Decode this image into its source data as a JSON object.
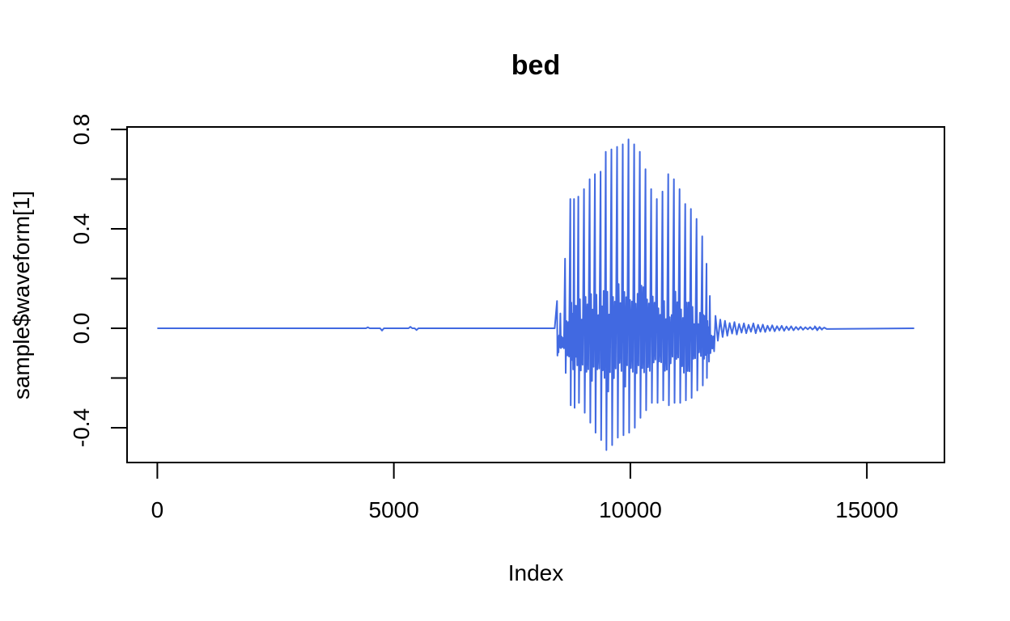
{
  "chart_data": {
    "type": "line",
    "title": "bed",
    "xlabel": "Index",
    "ylabel": "sample$waveform[1]",
    "xlim": [
      -640,
      16640
    ],
    "ylim": [
      -0.54,
      0.81
    ],
    "x_ticks": [
      0,
      5000,
      10000,
      15000
    ],
    "x_tick_labels": [
      "0",
      "5000",
      "10000",
      "15000"
    ],
    "y_ticks": [
      -0.4,
      -0.2,
      0.0,
      0.2,
      0.4,
      0.6,
      0.8
    ],
    "y_tick_labels": [
      "-0.4",
      "",
      "0.0",
      "",
      "0.4",
      "",
      "0.8"
    ],
    "grid": false,
    "series": [
      {
        "name": "waveform",
        "color": "#4169E1",
        "length": 16000,
        "x_range": [
          0,
          16000
        ],
        "peaks": [
          [
            8450,
            0.11,
            -0.11
          ],
          [
            8520,
            0.06,
            -0.08
          ],
          [
            8620,
            0.28,
            -0.18
          ],
          [
            8730,
            0.52,
            -0.31
          ],
          [
            8810,
            0.52,
            -0.32
          ],
          [
            8900,
            0.53,
            -0.3
          ],
          [
            9020,
            0.56,
            -0.34
          ],
          [
            9140,
            0.6,
            -0.38
          ],
          [
            9250,
            0.62,
            -0.42
          ],
          [
            9370,
            0.63,
            -0.45
          ],
          [
            9480,
            0.71,
            -0.49
          ],
          [
            9600,
            0.72,
            -0.47
          ],
          [
            9720,
            0.73,
            -0.44
          ],
          [
            9840,
            0.74,
            -0.43
          ],
          [
            9960,
            0.76,
            -0.42
          ],
          [
            10080,
            0.74,
            -0.4
          ],
          [
            10200,
            0.71,
            -0.36
          ],
          [
            10320,
            0.64,
            -0.33
          ],
          [
            10440,
            0.56,
            -0.3
          ],
          [
            10560,
            0.52,
            -0.3
          ],
          [
            10680,
            0.55,
            -0.29
          ],
          [
            10800,
            0.62,
            -0.31
          ],
          [
            10920,
            0.6,
            -0.3
          ],
          [
            11040,
            0.56,
            -0.3
          ],
          [
            11160,
            0.5,
            -0.29
          ],
          [
            11280,
            0.48,
            -0.28
          ],
          [
            11400,
            0.44,
            -0.25
          ],
          [
            11520,
            0.37,
            -0.23
          ],
          [
            11610,
            0.26,
            -0.2
          ],
          [
            11680,
            0.13,
            -0.1
          ]
        ],
        "tail": [
          [
            11800,
            0.05
          ],
          [
            12000,
            0.03
          ],
          [
            12200,
            0.025
          ],
          [
            12400,
            0.02
          ],
          [
            12600,
            0.02
          ],
          [
            12800,
            0.015
          ],
          [
            13000,
            0.012
          ],
          [
            13200,
            0.01
          ],
          [
            13400,
            0.008
          ],
          [
            13600,
            0.006
          ],
          [
            13800,
            0.005
          ],
          [
            13900,
            0.008
          ],
          [
            14000,
            0.004
          ]
        ],
        "small_blips": [
          [
            4450,
            0.004
          ],
          [
            4750,
            -0.009
          ],
          [
            5350,
            0.006
          ],
          [
            5480,
            -0.007
          ]
        ]
      }
    ]
  }
}
